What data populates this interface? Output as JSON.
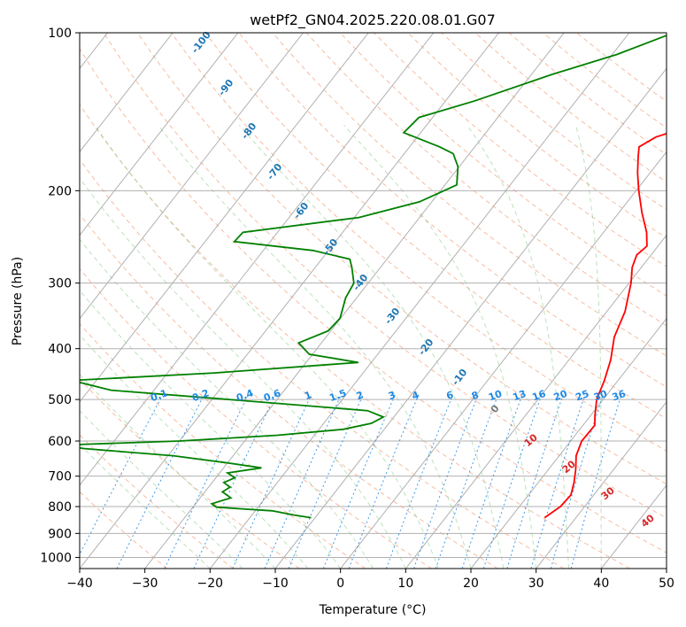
{
  "chart_data": {
    "type": "line",
    "subtype": "skew-t log-p",
    "title": "wetPf2_GN04.2025.220.08.01.G07",
    "xlabel": "Temperature (°C)",
    "ylabel": "Pressure (hPa)",
    "xlim": [
      -40,
      50
    ],
    "ylim": [
      1050,
      100
    ],
    "y_scale": "log",
    "x_ticks": [
      -40,
      -30,
      -20,
      -10,
      0,
      10,
      20,
      30,
      40,
      50
    ],
    "y_ticks": [
      100,
      200,
      300,
      400,
      500,
      600,
      700,
      800,
      900,
      1000
    ],
    "grid": true,
    "series": [
      {
        "color": "#ff0000",
        "points": [
          {
            "p": 840,
            "t": 25.2
          },
          {
            "p": 800,
            "t": 26.3
          },
          {
            "p": 760,
            "t": 26.5
          },
          {
            "p": 720,
            "t": 25.5
          },
          {
            "p": 680,
            "t": 24.2
          },
          {
            "p": 640,
            "t": 22.6
          },
          {
            "p": 600,
            "t": 21.7
          },
          {
            "p": 560,
            "t": 21.8
          },
          {
            "p": 535,
            "t": 20.6
          },
          {
            "p": 500,
            "t": 19.0
          },
          {
            "p": 460,
            "t": 17.9
          },
          {
            "p": 420,
            "t": 16.4
          },
          {
            "p": 380,
            "t": 14.2
          },
          {
            "p": 340,
            "t": 12.8
          },
          {
            "p": 300,
            "t": 10.3
          },
          {
            "p": 280,
            "t": 8.6
          },
          {
            "p": 265,
            "t": 7.8
          },
          {
            "p": 255,
            "t": 8.3
          },
          {
            "p": 240,
            "t": 6.6
          },
          {
            "p": 220,
            "t": 3.5
          },
          {
            "p": 200,
            "t": 0.4
          },
          {
            "p": 185,
            "t": -1.9
          },
          {
            "p": 172,
            "t": -3.8
          },
          {
            "p": 165,
            "t": -4.8
          },
          {
            "p": 158,
            "t": -3.4
          },
          {
            "p": 150,
            "t": 0.9
          },
          {
            "p": 140,
            "t": 6.3
          },
          {
            "p": 130,
            "t": 7.3
          },
          {
            "p": 120,
            "t": 7.0
          },
          {
            "p": 110,
            "t": 6.6
          },
          {
            "p": 100,
            "t": 5.9
          }
        ]
      },
      {
        "color": "#008000",
        "points": [
          {
            "p": 840,
            "t": -10.6
          },
          {
            "p": 830,
            "t": -13.6
          },
          {
            "p": 815,
            "t": -17.4
          },
          {
            "p": 808,
            "t": -22.3
          },
          {
            "p": 802,
            "t": -26.4
          },
          {
            "p": 790,
            "t": -27.5
          },
          {
            "p": 770,
            "t": -25.3
          },
          {
            "p": 750,
            "t": -27.3
          },
          {
            "p": 735,
            "t": -26.7
          },
          {
            "p": 720,
            "t": -28.2
          },
          {
            "p": 705,
            "t": -27.1
          },
          {
            "p": 690,
            "t": -28.8
          },
          {
            "p": 675,
            "t": -24.2
          },
          {
            "p": 660,
            "t": -30.2
          },
          {
            "p": 640,
            "t": -39.2
          },
          {
            "p": 620,
            "t": -54.0
          },
          {
            "p": 610,
            "t": -56.6
          },
          {
            "p": 600,
            "t": -40.0
          },
          {
            "p": 585,
            "t": -25.7
          },
          {
            "p": 570,
            "t": -16.3
          },
          {
            "p": 555,
            "t": -12.7
          },
          {
            "p": 540,
            "t": -11.6
          },
          {
            "p": 525,
            "t": -14.8
          },
          {
            "p": 500,
            "t": -37.4
          },
          {
            "p": 480,
            "t": -56.6
          },
          {
            "p": 460,
            "t": -63.8
          },
          {
            "p": 445,
            "t": -42.8
          },
          {
            "p": 425,
            "t": -22.0
          },
          {
            "p": 410,
            "t": -30.5
          },
          {
            "p": 390,
            "t": -33.5
          },
          {
            "p": 370,
            "t": -30.4
          },
          {
            "p": 350,
            "t": -30.1
          },
          {
            "p": 320,
            "t": -31.7
          },
          {
            "p": 300,
            "t": -32.2
          },
          {
            "p": 280,
            "t": -34.4
          },
          {
            "p": 270,
            "t": -35.7
          },
          {
            "p": 260,
            "t": -42.4
          },
          {
            "p": 250,
            "t": -55.5
          },
          {
            "p": 240,
            "t": -55.3
          },
          {
            "p": 225,
            "t": -39.3
          },
          {
            "p": 210,
            "t": -31.9
          },
          {
            "p": 195,
            "t": -28.2
          },
          {
            "p": 180,
            "t": -30.2
          },
          {
            "p": 170,
            "t": -32.5
          },
          {
            "p": 165,
            "t": -35.4
          },
          {
            "p": 155,
            "t": -42.6
          },
          {
            "p": 145,
            "t": -42.1
          },
          {
            "p": 135,
            "t": -35.6
          },
          {
            "p": 120,
            "t": -26.8
          },
          {
            "p": 110,
            "t": -19.3
          },
          {
            "p": 100,
            "t": -13.2
          }
        ]
      }
    ],
    "dry_adiabat_labels": [
      "-100",
      "-90",
      "-80",
      "-70",
      "-60",
      "-50",
      "-40",
      "-30",
      "-20",
      "-10",
      "0"
    ],
    "mixing_ratio_labels": [
      "0.1",
      "0.2",
      "0.4",
      "0.6",
      "1",
      "1.5",
      "2",
      "3",
      "4",
      "6",
      "8",
      "10",
      "13",
      "16",
      "20",
      "25",
      "30",
      "36"
    ],
    "moist_adiabat_labels": [
      "10",
      "20",
      "30",
      "40"
    ],
    "colors": {
      "isotherm": "#b0b0b0",
      "isobar": "#b0b0b0",
      "dry_adiabat": "#f4a582",
      "moist_adiabat": "#8fcf8f",
      "mixing_ratio": "#1e88e5",
      "dry_label": "#1f77b4",
      "mix_label": "#1e88e5",
      "moist_label": "#d62728",
      "zero_label": "#777777"
    }
  }
}
